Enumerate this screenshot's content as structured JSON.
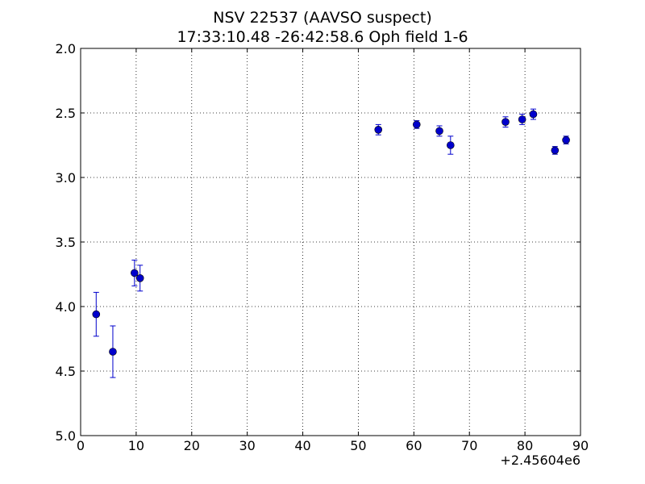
{
  "chart_data": {
    "type": "scatter",
    "title_line1": "NSV 22537 (AAVSO suspect)",
    "title_line2": "17:33:10.48 -26:42:58.6 Oph field 1-6",
    "xlabel": "",
    "ylabel": "",
    "x_offset_label": "+2.45604e6",
    "xlim": [
      0,
      90
    ],
    "ylim": [
      5.0,
      2.0
    ],
    "y_inverted": true,
    "grid": true,
    "x_ticks": [
      "0",
      "10",
      "20",
      "30",
      "40",
      "50",
      "60",
      "70",
      "80",
      "90"
    ],
    "y_ticks": [
      "2.0",
      "2.5",
      "3.0",
      "3.5",
      "4.0",
      "4.5",
      "5.0"
    ],
    "marker_color": "#0000cc",
    "points": [
      {
        "x": 2.8,
        "y": 4.06,
        "err": 0.17
      },
      {
        "x": 5.8,
        "y": 4.35,
        "err": 0.2
      },
      {
        "x": 9.7,
        "y": 3.74,
        "err": 0.1
      },
      {
        "x": 10.7,
        "y": 3.78,
        "err": 0.1
      },
      {
        "x": 53.6,
        "y": 2.63,
        "err": 0.04
      },
      {
        "x": 60.5,
        "y": 2.59,
        "err": 0.03
      },
      {
        "x": 64.6,
        "y": 2.64,
        "err": 0.04
      },
      {
        "x": 66.6,
        "y": 2.75,
        "err": 0.07
      },
      {
        "x": 76.5,
        "y": 2.57,
        "err": 0.04
      },
      {
        "x": 79.5,
        "y": 2.55,
        "err": 0.04
      },
      {
        "x": 81.5,
        "y": 2.51,
        "err": 0.04
      },
      {
        "x": 85.4,
        "y": 2.79,
        "err": 0.03
      },
      {
        "x": 87.4,
        "y": 2.71,
        "err": 0.03
      }
    ]
  }
}
